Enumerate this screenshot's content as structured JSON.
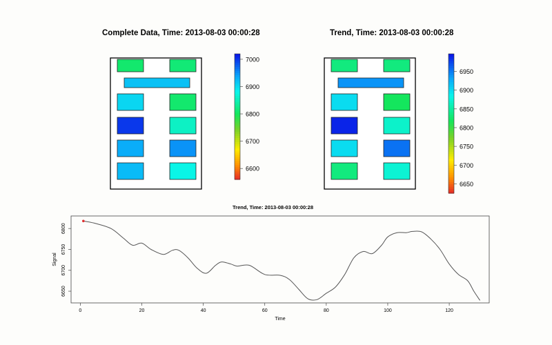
{
  "titles": {
    "left": "Complete Data, Time: 2013-08-03 00:00:28",
    "right": "Trend, Time: 2013-08-03 00:00:28",
    "bottom": "Trend, Time: 2013-08-03 00:00:28"
  },
  "chart_data": [
    {
      "type": "heatmap",
      "title": "Complete Data, Time: 2013-08-03 00:00:28",
      "colorbar": {
        "range": [
          6560,
          7020
        ],
        "ticks": [
          6600,
          6700,
          6800,
          6900,
          7000
        ]
      },
      "cells": [
        {
          "id": "top-left",
          "value": 6810
        },
        {
          "id": "top-right",
          "value": 6815
        },
        {
          "id": "wide",
          "value": 6920
        },
        {
          "id": "r2-left",
          "value": 6905
        },
        {
          "id": "r2-right",
          "value": 6810
        },
        {
          "id": "r3-left",
          "value": 7000
        },
        {
          "id": "r3-right",
          "value": 6860
        },
        {
          "id": "r4-left",
          "value": 6935
        },
        {
          "id": "r4-right",
          "value": 6950
        },
        {
          "id": "r5-left",
          "value": 6925
        },
        {
          "id": "r5-right",
          "value": 6880
        }
      ]
    },
    {
      "type": "heatmap",
      "title": "Trend, Time: 2013-08-03 00:00:28",
      "colorbar": {
        "range": [
          6625,
          6997
        ],
        "ticks": [
          6650,
          6700,
          6750,
          6800,
          6850,
          6900,
          6950
        ]
      },
      "cells": [
        {
          "id": "top-left",
          "value": 6835
        },
        {
          "id": "top-right",
          "value": 6835
        },
        {
          "id": "wide",
          "value": 6940
        },
        {
          "id": "r2-left",
          "value": 6900
        },
        {
          "id": "r2-right",
          "value": 6820
        },
        {
          "id": "r3-left",
          "value": 6990
        },
        {
          "id": "r3-right",
          "value": 6870
        },
        {
          "id": "r4-left",
          "value": 6900
        },
        {
          "id": "r4-right",
          "value": 6955
        },
        {
          "id": "r5-left",
          "value": 6835
        },
        {
          "id": "r5-right",
          "value": 6875
        }
      ]
    },
    {
      "type": "line",
      "title": "Trend, Time: 2013-08-03 00:00:28",
      "xlabel": "Time",
      "ylabel": "Signal",
      "xlim": [
        -3,
        133
      ],
      "ylim": [
        6622,
        6830
      ],
      "xticks": [
        0,
        20,
        40,
        60,
        80,
        100,
        120
      ],
      "yticks": [
        6650,
        6700,
        6750,
        6800
      ],
      "marker": {
        "x": 1,
        "y": 6818,
        "color": "#e03030"
      },
      "series": [
        {
          "color": "#555555",
          "x": [
            1,
            5,
            10,
            14,
            17,
            20,
            23,
            27,
            30,
            32,
            35,
            38,
            41,
            44,
            46,
            49,
            51,
            55,
            60,
            65,
            68,
            71,
            74,
            77,
            80,
            83,
            86,
            89,
            92,
            95,
            98,
            100,
            103,
            106,
            108,
            111,
            114,
            117,
            120,
            123,
            126,
            128,
            130
          ],
          "y": [
            6818,
            6812,
            6800,
            6777,
            6760,
            6765,
            6750,
            6738,
            6748,
            6748,
            6730,
            6705,
            6693,
            6712,
            6720,
            6715,
            6710,
            6712,
            6690,
            6688,
            6678,
            6655,
            6632,
            6630,
            6645,
            6660,
            6690,
            6730,
            6745,
            6740,
            6760,
            6780,
            6790,
            6790,
            6793,
            6792,
            6775,
            6750,
            6715,
            6690,
            6675,
            6650,
            6628
          ]
        }
      ]
    }
  ]
}
